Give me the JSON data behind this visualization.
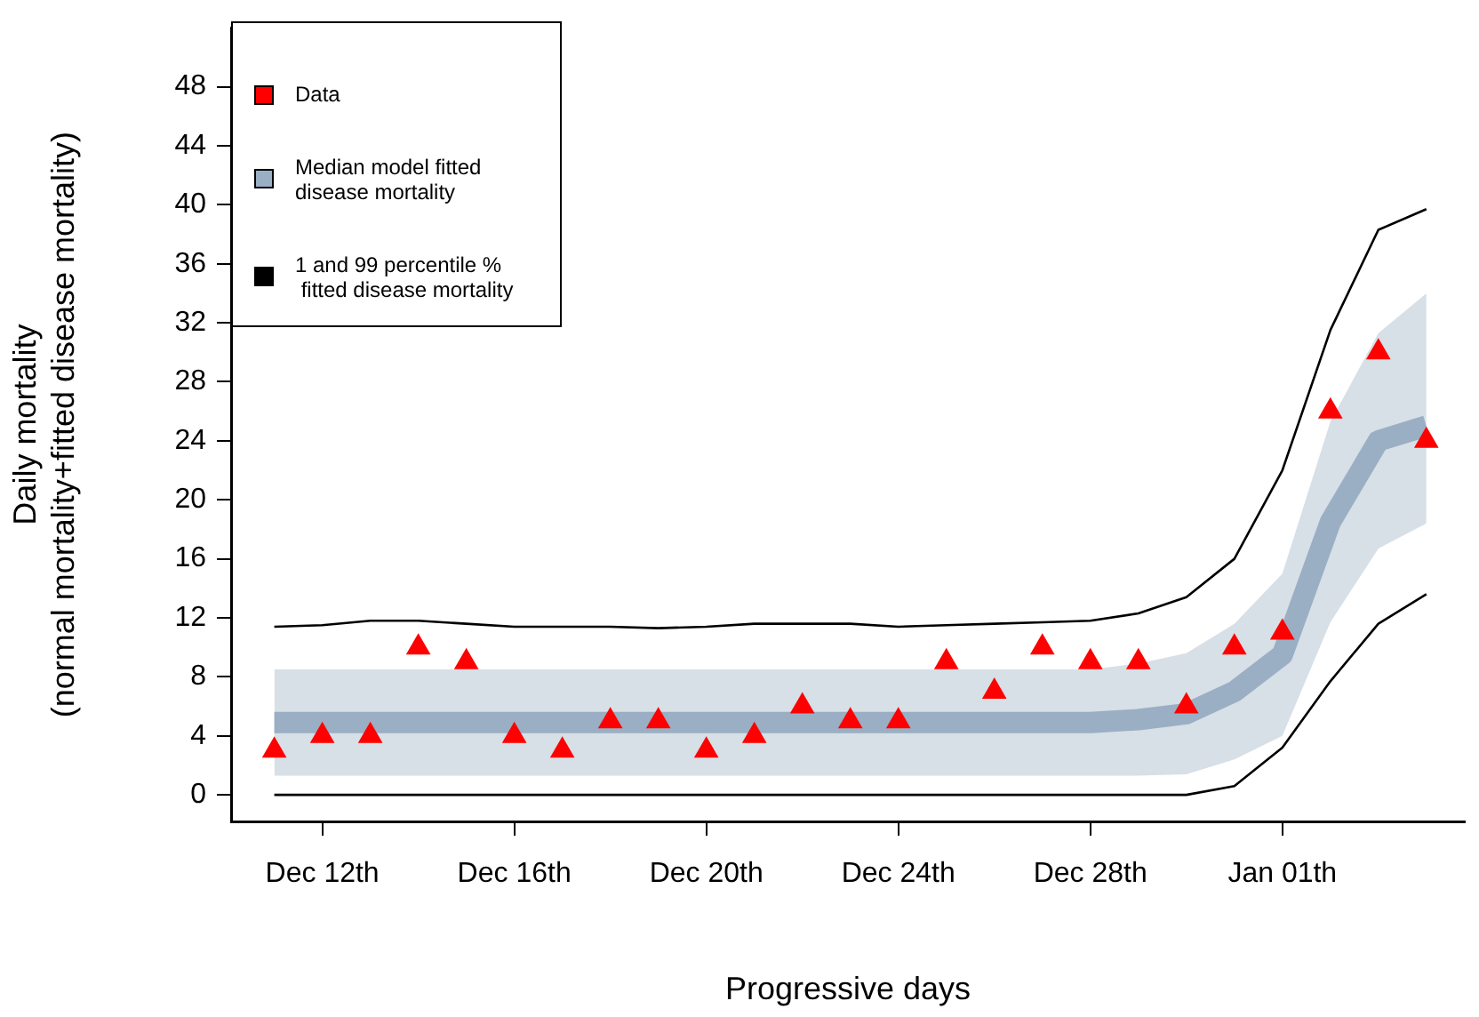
{
  "chart_data": {
    "type": "scatter",
    "xlabel": "Progressive days",
    "ylabel": "Daily mortality\n(normal mortality+fitted disease mortality)",
    "categories": [
      null,
      "Dec 12th",
      null,
      null,
      null,
      "Dec 16th",
      null,
      null,
      null,
      "Dec 20th",
      null,
      null,
      null,
      "Dec 24th",
      null,
      null,
      null,
      "Dec 28th",
      null,
      null,
      null,
      "Jan 01th",
      null,
      null,
      null
    ],
    "ylim": [
      -1.8,
      52
    ],
    "yticks": [
      0,
      4,
      8,
      12,
      16,
      20,
      24,
      28,
      32,
      36,
      40,
      44,
      48
    ],
    "grid": false,
    "legend": "top left",
    "series": [
      {
        "name": "Data",
        "color": "#ff0000",
        "marker": "triangle",
        "values": [
          3,
          4,
          4,
          10,
          9,
          4,
          3,
          5,
          5,
          3,
          4,
          6,
          5,
          5,
          9,
          7,
          10,
          9,
          9,
          6,
          10,
          11,
          26,
          30,
          24
        ]
      },
      {
        "name": "Median model fitted\ndisease mortality",
        "type": "line",
        "color": "#9aafc4",
        "values": [
          4.9,
          4.9,
          4.9,
          4.9,
          4.9,
          4.9,
          4.9,
          4.9,
          4.9,
          4.9,
          4.9,
          4.9,
          4.9,
          4.9,
          4.9,
          4.9,
          4.9,
          4.9,
          5.1,
          5.5,
          7.0,
          9.5,
          18.5,
          24,
          25
        ],
        "lower": [
          1.3,
          1.3,
          1.3,
          1.3,
          1.3,
          1.3,
          1.3,
          1.3,
          1.3,
          1.3,
          1.3,
          1.3,
          1.3,
          1.3,
          1.3,
          1.3,
          1.3,
          1.3,
          1.3,
          1.4,
          2.4,
          4.0,
          11.7,
          16.7,
          18.4
        ],
        "upper": [
          8.5,
          8.5,
          8.5,
          8.5,
          8.5,
          8.5,
          8.5,
          8.5,
          8.5,
          8.5,
          8.5,
          8.5,
          8.5,
          8.5,
          8.5,
          8.5,
          8.5,
          8.5,
          8.9,
          9.6,
          11.6,
          15.0,
          25.3,
          31.3,
          34
        ]
      },
      {
        "name": "1 and 99 percentile %\n fitted disease mortality",
        "type": "line",
        "color": "#000000",
        "values": [
          11.4,
          11.5,
          11.8,
          11.8,
          11.6,
          11.4,
          11.4,
          11.4,
          11.3,
          11.4,
          11.6,
          11.6,
          11.6,
          11.4,
          11.5,
          11.6,
          11.7,
          11.8,
          12.3,
          13.4,
          16.0,
          22.0,
          31.5,
          38.3,
          39.7
        ]
      },
      {
        "type": "line",
        "color": "#000000",
        "values": [
          0,
          0,
          0,
          0,
          0,
          0,
          0,
          0,
          0,
          0,
          0,
          0,
          0,
          0,
          0,
          0,
          0,
          0,
          0,
          0,
          0.6,
          3.2,
          7.7,
          11.6,
          13.6
        ]
      }
    ]
  }
}
